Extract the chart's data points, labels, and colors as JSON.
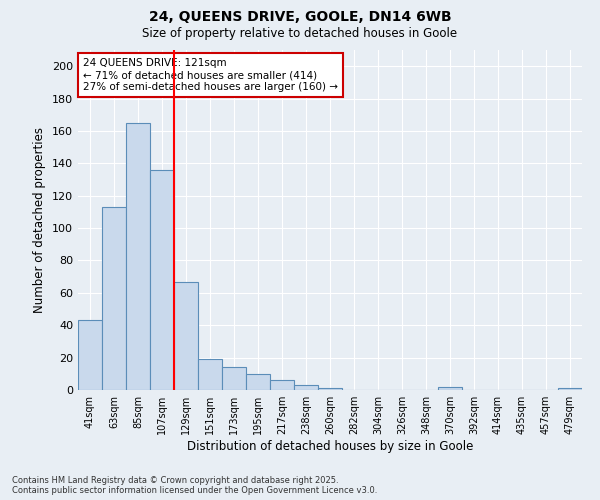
{
  "title_line1": "24, QUEENS DRIVE, GOOLE, DN14 6WB",
  "title_line2": "Size of property relative to detached houses in Goole",
  "xlabel": "Distribution of detached houses by size in Goole",
  "ylabel": "Number of detached properties",
  "categories": [
    "41sqm",
    "63sqm",
    "85sqm",
    "107sqm",
    "129sqm",
    "151sqm",
    "173sqm",
    "195sqm",
    "217sqm",
    "238sqm",
    "260sqm",
    "282sqm",
    "304sqm",
    "326sqm",
    "348sqm",
    "370sqm",
    "392sqm",
    "414sqm",
    "435sqm",
    "457sqm",
    "479sqm"
  ],
  "values": [
    43,
    113,
    165,
    136,
    67,
    19,
    14,
    10,
    6,
    3,
    1,
    0,
    0,
    0,
    0,
    2,
    0,
    0,
    0,
    0,
    1
  ],
  "bar_color": "#c9d9ec",
  "bar_edge_color": "#5b8db8",
  "background_color": "#e8eef4",
  "red_line_x": 3.5,
  "annotation_title": "24 QUEENS DRIVE: 121sqm",
  "annotation_line1": "← 71% of detached houses are smaller (414)",
  "annotation_line2": "27% of semi-detached houses are larger (160) →",
  "annotation_box_color": "#ffffff",
  "annotation_box_edge_color": "#cc0000",
  "ylim": [
    0,
    210
  ],
  "yticks": [
    0,
    20,
    40,
    60,
    80,
    100,
    120,
    140,
    160,
    180,
    200
  ],
  "footnote_line1": "Contains HM Land Registry data © Crown copyright and database right 2025.",
  "footnote_line2": "Contains public sector information licensed under the Open Government Licence v3.0."
}
